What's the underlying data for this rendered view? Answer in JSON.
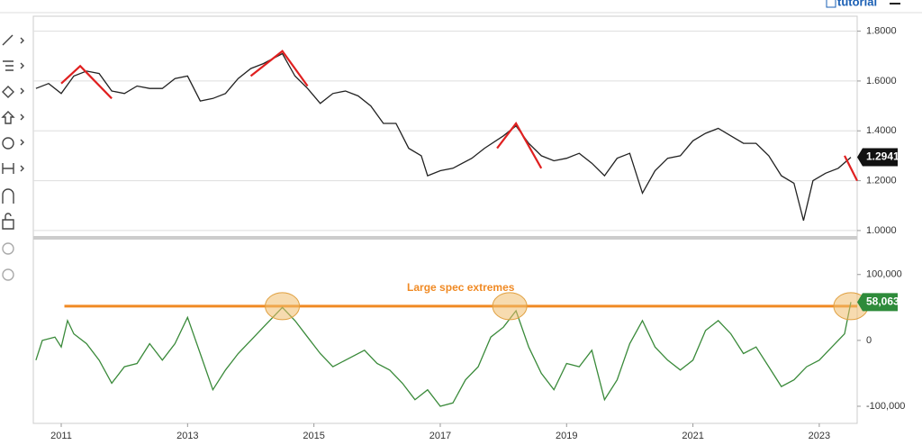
{
  "toolbar": {
    "link": "tutorial"
  },
  "chart_data": [
    {
      "type": "line",
      "color": "#222222",
      "x": [
        2010.6,
        2010.8,
        2011.0,
        2011.2,
        2011.4,
        2011.6,
        2011.8,
        2012.0,
        2012.2,
        2012.4,
        2012.6,
        2012.8,
        2013.0,
        2013.2,
        2013.4,
        2013.6,
        2013.8,
        2014.0,
        2014.2,
        2014.5,
        2014.7,
        2014.9,
        2015.1,
        2015.3,
        2015.5,
        2015.7,
        2015.9,
        2016.1,
        2016.3,
        2016.5,
        2016.7,
        2016.8,
        2017.0,
        2017.2,
        2017.5,
        2017.7,
        2018.0,
        2018.2,
        2018.4,
        2018.6,
        2018.8,
        2019.0,
        2019.2,
        2019.4,
        2019.6,
        2019.8,
        2020.0,
        2020.2,
        2020.4,
        2020.6,
        2020.8,
        2021.0,
        2021.2,
        2021.4,
        2021.6,
        2021.8,
        2022.0,
        2022.2,
        2022.4,
        2022.6,
        2022.75,
        2022.9,
        2023.1,
        2023.3,
        2023.5
      ],
      "values": [
        1.57,
        1.59,
        1.55,
        1.62,
        1.64,
        1.63,
        1.56,
        1.55,
        1.58,
        1.57,
        1.57,
        1.61,
        1.62,
        1.52,
        1.53,
        1.55,
        1.61,
        1.65,
        1.67,
        1.71,
        1.62,
        1.57,
        1.51,
        1.55,
        1.56,
        1.54,
        1.5,
        1.43,
        1.43,
        1.33,
        1.3,
        1.22,
        1.24,
        1.25,
        1.29,
        1.33,
        1.38,
        1.42,
        1.35,
        1.3,
        1.28,
        1.29,
        1.31,
        1.27,
        1.22,
        1.29,
        1.31,
        1.15,
        1.24,
        1.29,
        1.3,
        1.36,
        1.39,
        1.41,
        1.38,
        1.35,
        1.35,
        1.3,
        1.22,
        1.19,
        1.04,
        1.2,
        1.23,
        1.25,
        1.2941
      ],
      "xlim": [
        2010.558,
        2023.6
      ],
      "ylim": [
        0.978,
        1.86
      ],
      "yticks": [
        {
          "value": 1.0,
          "label": "1.0000"
        },
        {
          "value": 1.2,
          "label": "1.2000"
        },
        {
          "value": 1.4,
          "label": "1.4000"
        },
        {
          "value": 1.6,
          "label": "1.6000"
        },
        {
          "value": 1.8,
          "label": "1.8000"
        }
      ],
      "grid": true,
      "last_value": 1.2941,
      "trend_lines": [
        {
          "color": "#e02020",
          "x": [
            2011.0,
            2011.3,
            2011.8
          ],
          "y": [
            1.59,
            1.66,
            1.53
          ]
        },
        {
          "color": "#e02020",
          "x": [
            2014.0,
            2014.5,
            2014.9
          ],
          "y": [
            1.62,
            1.72,
            1.58
          ]
        },
        {
          "color": "#e02020",
          "x": [
            2017.9,
            2018.2,
            2018.6
          ],
          "y": [
            1.33,
            1.43,
            1.25
          ]
        },
        {
          "color": "#e02020",
          "x": [
            2023.4,
            2023.6
          ],
          "y": [
            1.3,
            1.2
          ]
        }
      ]
    },
    {
      "type": "line",
      "color": "#3a8a3a",
      "x": [
        2010.6,
        2010.7,
        2010.9,
        2011.0,
        2011.1,
        2011.2,
        2011.4,
        2011.6,
        2011.8,
        2012.0,
        2012.2,
        2012.4,
        2012.6,
        2012.8,
        2013.0,
        2013.2,
        2013.4,
        2013.6,
        2013.8,
        2014.0,
        2014.2,
        2014.5,
        2014.7,
        2014.9,
        2015.1,
        2015.3,
        2015.5,
        2015.8,
        2016.0,
        2016.2,
        2016.4,
        2016.6,
        2016.8,
        2017.0,
        2017.2,
        2017.4,
        2017.6,
        2017.8,
        2018.0,
        2018.2,
        2018.4,
        2018.6,
        2018.8,
        2019.0,
        2019.2,
        2019.4,
        2019.6,
        2019.8,
        2020.0,
        2020.2,
        2020.4,
        2020.6,
        2020.8,
        2021.0,
        2021.2,
        2021.4,
        2021.6,
        2021.8,
        2022.0,
        2022.2,
        2022.4,
        2022.6,
        2022.8,
        2023.0,
        2023.2,
        2023.4,
        2023.5
      ],
      "values": [
        -30000,
        0,
        5000,
        -10000,
        30000,
        10000,
        -5000,
        -30000,
        -65000,
        -40000,
        -35000,
        -5000,
        -30000,
        -5000,
        35000,
        -20000,
        -75000,
        -45000,
        -20000,
        0,
        20000,
        50000,
        30000,
        5000,
        -20000,
        -40000,
        -30000,
        -15000,
        -35000,
        -45000,
        -65000,
        -90000,
        -75000,
        -100000,
        -95000,
        -60000,
        -40000,
        5000,
        20000,
        45000,
        -10000,
        -50000,
        -75000,
        -35000,
        -40000,
        -15000,
        -90000,
        -60000,
        -5000,
        30000,
        -10000,
        -30000,
        -45000,
        -30000,
        15000,
        30000,
        10000,
        -20000,
        -10000,
        -40000,
        -70000,
        -60000,
        -40000,
        -30000,
        -10000,
        10000,
        58063
      ],
      "xlim": [
        2010.558,
        2023.6
      ],
      "ylim": [
        -126000,
        153000
      ],
      "yticks": [
        {
          "value": -100000,
          "label": "-100,000"
        },
        0,
        {
          "value": 100000,
          "label": "100,000"
        }
      ],
      "xticks": [
        2011,
        2013,
        2015,
        2017,
        2019,
        2021,
        2023
      ],
      "last_value": 58063,
      "last_value_label": "58,063",
      "reference_line": {
        "value": 52000,
        "label": "Large spec extremes",
        "color": "#f08a24",
        "x": [
          2011.05,
          2023.6
        ]
      },
      "highlights": [
        2014.5,
        2018.1,
        2023.5
      ]
    }
  ]
}
